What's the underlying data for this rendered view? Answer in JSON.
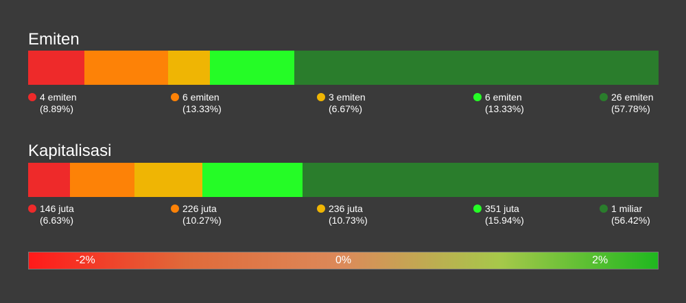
{
  "emiten": {
    "title": "Emiten",
    "items": [
      {
        "label": "4 emiten",
        "pct": "(8.89%)",
        "value": 8.89,
        "color": "#ee2a2a"
      },
      {
        "label": "6 emiten",
        "pct": "(13.33%)",
        "value": 13.33,
        "color": "#fd8207"
      },
      {
        "label": "3 emiten",
        "pct": "(6.67%)",
        "value": 6.67,
        "color": "#efb504"
      },
      {
        "label": "6 emiten",
        "pct": "(13.33%)",
        "value": 13.33,
        "color": "#25fc26"
      },
      {
        "label": "26 emiten",
        "pct": "(57.78%)",
        "value": 57.78,
        "color": "#2a7d2c"
      }
    ]
  },
  "kapitalisasi": {
    "title": "Kapitalisasi",
    "items": [
      {
        "label": "146 juta",
        "pct": "(6.63%)",
        "value": 6.63,
        "color": "#ee2a2a"
      },
      {
        "label": "226 juta",
        "pct": "(10.27%)",
        "value": 10.27,
        "color": "#fd8207"
      },
      {
        "label": "236 juta",
        "pct": "(10.73%)",
        "value": 10.73,
        "color": "#efb504"
      },
      {
        "label": "351 juta",
        "pct": "(15.94%)",
        "value": 15.94,
        "color": "#25fc26"
      },
      {
        "label": "1 miliar",
        "pct": "(56.42%)",
        "value": 56.42,
        "color": "#2a7d2c"
      }
    ]
  },
  "scale": {
    "left": "-2%",
    "center": "0%",
    "right": "2%"
  },
  "chart_data": [
    {
      "type": "bar",
      "title": "Emiten",
      "categories": [
        "4 emiten",
        "6 emiten",
        "3 emiten",
        "6 emiten",
        "26 emiten"
      ],
      "values": [
        8.89,
        13.33,
        6.67,
        13.33,
        57.78
      ]
    },
    {
      "type": "bar",
      "title": "Kapitalisasi",
      "categories": [
        "146 juta",
        "226 juta",
        "236 juta",
        "351 juta",
        "1 miliar"
      ],
      "values": [
        6.63,
        10.27,
        10.73,
        15.94,
        56.42
      ]
    }
  ]
}
